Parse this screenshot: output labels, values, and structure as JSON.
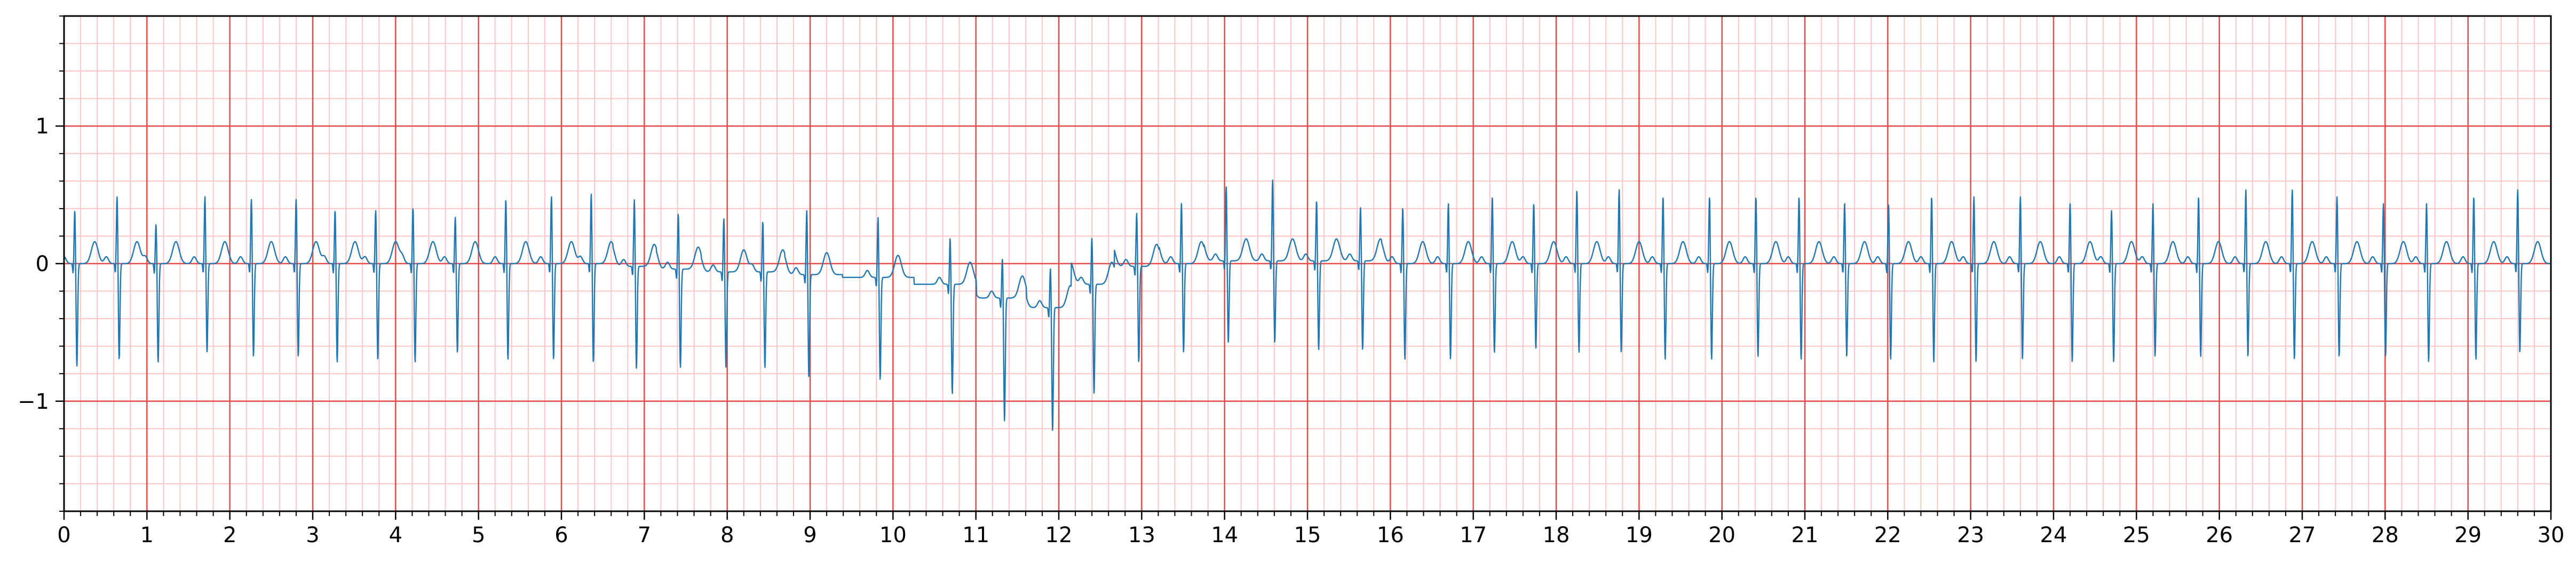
{
  "chart_data": {
    "type": "line",
    "title": "",
    "xlabel": "",
    "ylabel": "",
    "xlim": [
      0,
      30
    ],
    "ylim": [
      -1.8,
      1.8
    ],
    "x_ticks": [
      0,
      1,
      2,
      3,
      4,
      5,
      6,
      7,
      8,
      9,
      10,
      11,
      12,
      13,
      14,
      15,
      16,
      17,
      18,
      19,
      20,
      21,
      22,
      23,
      24,
      25,
      26,
      27,
      28,
      29,
      30
    ],
    "x_tick_labels": [
      "0",
      "1",
      "2",
      "3",
      "4",
      "5",
      "6",
      "7",
      "8",
      "9",
      "10",
      "11",
      "12",
      "13",
      "14",
      "15",
      "16",
      "17",
      "18",
      "19",
      "20",
      "21",
      "22",
      "23",
      "24",
      "25",
      "26",
      "27",
      "28",
      "29",
      "30"
    ],
    "y_ticks": [
      -1,
      0,
      1
    ],
    "y_tick_labels": [
      "−1",
      "0",
      "1"
    ],
    "grid": "ECG paper: major lines every 1 s / 1 unit, minor lines every 0.2 s / 0.2 units",
    "series": [
      {
        "color": "#1f77b4",
        "beat_times": [
          0.13,
          0.64,
          1.11,
          1.7,
          2.26,
          2.8,
          3.27,
          3.76,
          4.21,
          4.72,
          5.33,
          5.88,
          6.36,
          6.88,
          7.41,
          7.96,
          8.43,
          8.96,
          9.82,
          10.69,
          11.32,
          11.9,
          12.4,
          12.94,
          13.48,
          14.02,
          14.58,
          15.11,
          15.64,
          16.15,
          16.7,
          17.23,
          17.73,
          18.25,
          18.76,
          19.29,
          19.85,
          20.41,
          20.93,
          21.48,
          22.01,
          22.53,
          23.04,
          23.6,
          24.2,
          24.7,
          25.2,
          25.75,
          26.32,
          26.88,
          27.42,
          27.98,
          28.5,
          29.07,
          29.6
        ],
        "r_amplitudes": [
          0.4,
          0.5,
          0.3,
          0.5,
          0.48,
          0.48,
          0.4,
          0.4,
          0.42,
          0.35,
          0.48,
          0.5,
          0.52,
          0.5,
          0.42,
          0.4,
          0.38,
          0.48,
          0.45,
          0.35,
          0.3,
          0.3,
          0.35,
          0.4,
          0.45,
          0.55,
          0.6,
          0.45,
          0.4,
          0.42,
          0.45,
          0.5,
          0.45,
          0.55,
          0.55,
          0.5,
          0.5,
          0.5,
          0.5,
          0.45,
          0.45,
          0.5,
          0.5,
          0.5,
          0.45,
          0.4,
          0.45,
          0.5,
          0.55,
          0.55,
          0.5,
          0.45,
          0.45,
          0.5,
          0.55
        ],
        "s_amplitudes": [
          -0.75,
          -0.7,
          -0.72,
          -0.65,
          -0.68,
          -0.68,
          -0.72,
          -0.7,
          -0.72,
          -0.65,
          -0.7,
          -0.7,
          -0.72,
          -0.75,
          -0.72,
          -0.7,
          -0.7,
          -0.75,
          -0.75,
          -0.8,
          -0.9,
          -0.9,
          -0.8,
          -0.7,
          -0.65,
          -0.6,
          -0.6,
          -0.65,
          -0.65,
          -0.7,
          -0.7,
          -0.65,
          -0.62,
          -0.65,
          -0.65,
          -0.7,
          -0.7,
          -0.68,
          -0.7,
          -0.68,
          -0.7,
          -0.72,
          -0.72,
          -0.7,
          -0.72,
          -0.72,
          -0.68,
          -0.68,
          -0.68,
          -0.7,
          -0.68,
          -0.68,
          -0.72,
          -0.7,
          -0.65
        ],
        "baseline_offsets": [
          0,
          0,
          0,
          0,
          0,
          0,
          0,
          0,
          0,
          0,
          0,
          0,
          0,
          -0.02,
          -0.04,
          -0.06,
          -0.06,
          -0.08,
          -0.1,
          -0.15,
          -0.25,
          -0.32,
          -0.15,
          -0.02,
          0,
          0.02,
          0.02,
          0.02,
          0.02,
          0,
          0,
          0,
          0,
          0,
          0,
          0,
          0,
          0,
          0,
          0,
          0,
          0,
          0,
          0,
          0,
          0,
          0,
          0,
          0,
          0,
          0,
          0,
          0,
          0,
          0
        ]
      }
    ]
  }
}
